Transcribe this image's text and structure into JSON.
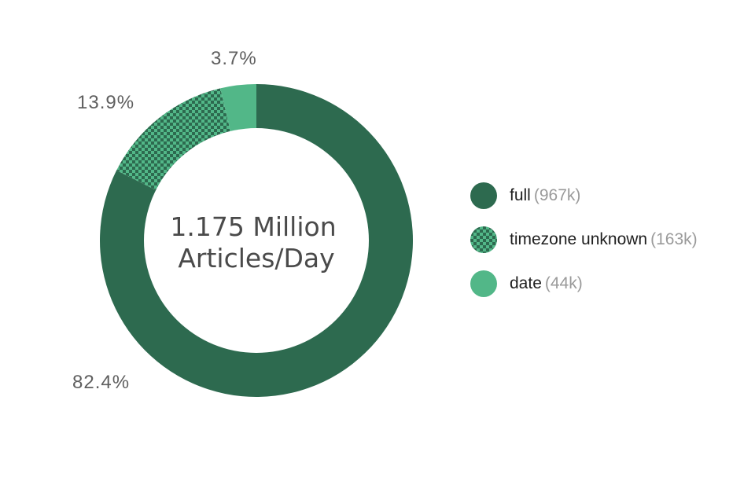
{
  "chart_data": {
    "type": "pie",
    "center_label": [
      "1.175 Million",
      "Articles/Day"
    ],
    "slices": [
      {
        "name": "full",
        "count_label": "(967k)",
        "value": 82.4,
        "pct_label": "82.4%",
        "color": "#2d6a4f",
        "pattern": "solid"
      },
      {
        "name": "timezone unknown",
        "count_label": "(163k)",
        "value": 13.9,
        "pct_label": "13.9%",
        "color": "#2d6a4f",
        "pattern": "checker",
        "pattern_color": "#52b788"
      },
      {
        "name": "date",
        "count_label": "(44k)",
        "value": 3.7,
        "pct_label": "3.7%",
        "color": "#52b788",
        "pattern": "solid"
      }
    ],
    "legend_position": "right"
  }
}
